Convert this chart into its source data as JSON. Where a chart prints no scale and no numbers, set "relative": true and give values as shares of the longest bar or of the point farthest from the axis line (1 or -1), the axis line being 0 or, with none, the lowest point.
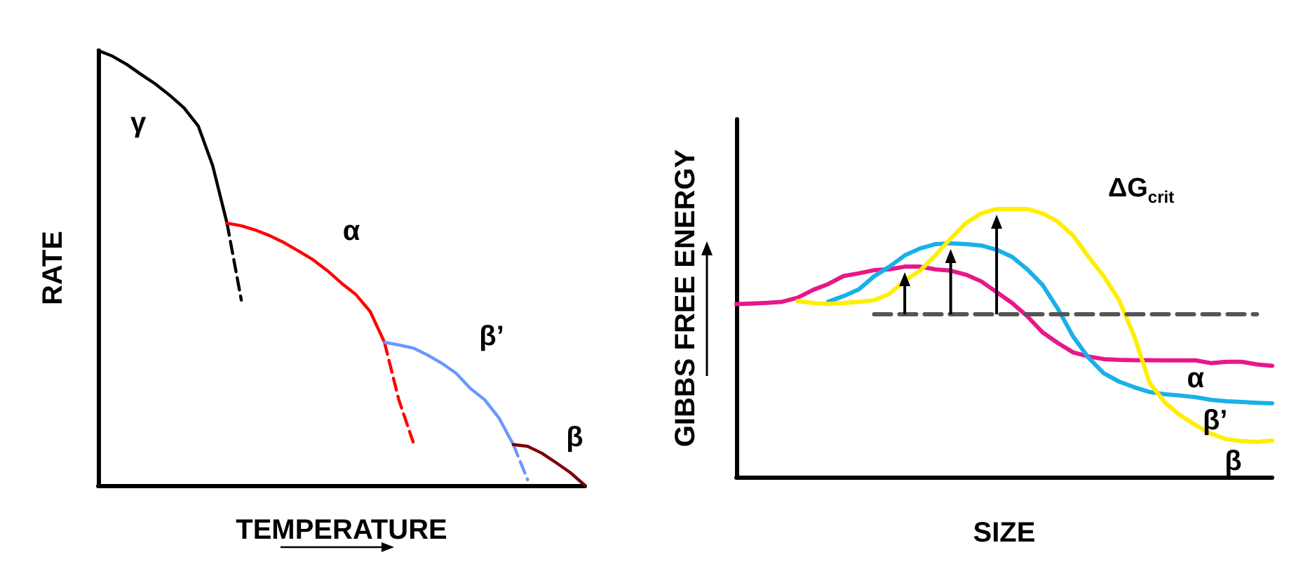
{
  "chart_data": [
    {
      "type": "line",
      "relative": true,
      "xlabel": "TEMPERATURE",
      "ylabel": "RATE",
      "marker": "none",
      "categories": [
        null,
        null,
        null,
        null,
        null,
        null,
        null,
        null,
        null,
        null,
        null,
        null,
        null,
        null,
        null,
        null,
        null,
        null,
        null,
        null,
        null,
        null,
        null,
        null,
        null,
        null,
        null,
        null,
        null,
        null,
        null,
        null,
        null,
        null,
        null
      ],
      "series": [
        {
          "name": "γ",
          "color": "#000000",
          "values": [
            1,
            0.987,
            0.968,
            0.945,
            0.923,
            0.897,
            0.868,
            0.826,
            0.735,
            0.603,
            null,
            null,
            null,
            null,
            null,
            null,
            null,
            null,
            null,
            null,
            null,
            null,
            null,
            null,
            null,
            null,
            null,
            null,
            null,
            null,
            null,
            null,
            null,
            null,
            null
          ]
        },
        {
          "color": "#000000",
          "line_style": "dashed",
          "values": [
            null,
            null,
            null,
            null,
            null,
            null,
            null,
            null,
            null,
            0.603,
            0.426,
            null,
            null,
            null,
            null,
            null,
            null,
            null,
            null,
            null,
            null,
            null,
            null,
            null,
            null,
            null,
            null,
            null,
            null,
            null,
            null,
            null,
            null,
            null,
            null
          ]
        },
        {
          "name": "α",
          "color": "#ff0000",
          "values": [
            null,
            null,
            null,
            null,
            null,
            null,
            null,
            null,
            null,
            0.603,
            0.597,
            0.587,
            0.574,
            0.558,
            0.539,
            0.519,
            0.494,
            0.465,
            0.439,
            0.4,
            0.329,
            null,
            null,
            null,
            null,
            null,
            null,
            null,
            null,
            null,
            null,
            null,
            null,
            null,
            null
          ]
        },
        {
          "color": "#ff0000",
          "line_style": "dashed",
          "values": [
            null,
            null,
            null,
            null,
            null,
            null,
            null,
            null,
            null,
            null,
            null,
            null,
            null,
            null,
            null,
            null,
            null,
            null,
            null,
            null,
            0.329,
            0.197,
            0.1,
            null,
            null,
            null,
            null,
            null,
            null,
            null,
            null,
            null,
            null,
            null,
            null
          ]
        },
        {
          "name": "β’",
          "color": "#6699ff",
          "values": [
            null,
            null,
            null,
            null,
            null,
            null,
            null,
            null,
            null,
            null,
            null,
            null,
            null,
            null,
            null,
            null,
            null,
            null,
            null,
            null,
            0.329,
            0.323,
            0.316,
            0.3,
            0.281,
            0.258,
            0.223,
            0.197,
            0.155,
            0.094,
            null,
            null,
            null,
            null,
            null
          ]
        },
        {
          "color": "#6699ff",
          "line_style": "dashed",
          "values": [
            null,
            null,
            null,
            null,
            null,
            null,
            null,
            null,
            null,
            null,
            null,
            null,
            null,
            null,
            null,
            null,
            null,
            null,
            null,
            null,
            null,
            null,
            null,
            null,
            null,
            null,
            null,
            null,
            null,
            0.094,
            0.013,
            null,
            null,
            null,
            null
          ]
        },
        {
          "name": "β",
          "color": "#7b0000",
          "values": [
            null,
            null,
            null,
            null,
            null,
            null,
            null,
            null,
            null,
            null,
            null,
            null,
            null,
            null,
            null,
            null,
            null,
            null,
            null,
            null,
            null,
            null,
            null,
            null,
            null,
            null,
            null,
            null,
            null,
            0.094,
            0.09,
            0.074,
            0.052,
            0.029,
            0
          ]
        }
      ]
    },
    {
      "type": "line",
      "relative": true,
      "xlabel": "SIZE",
      "ylabel": "GIBBS FREE ENERGY",
      "marker": "none",
      "annotations": [
        "ΔG$_{crit}$"
      ],
      "categories": [
        null,
        null,
        null,
        null,
        null,
        null,
        null,
        null,
        null,
        null,
        null,
        null,
        null,
        null,
        null,
        null,
        null,
        null,
        null,
        null,
        null,
        null,
        null,
        null,
        null,
        null,
        null,
        null,
        null,
        null,
        null,
        null,
        null,
        null,
        null,
        null
      ],
      "series": [
        {
          "name": "α",
          "color": "#e8178a",
          "values": [
            0.645,
            0.647,
            0.65,
            0.654,
            0.669,
            0.698,
            0.72,
            0.75,
            0.76,
            0.772,
            0.775,
            0.785,
            0.785,
            0.775,
            0.77,
            0.755,
            0.73,
            0.69,
            0.65,
            0.6,
            0.54,
            0.5,
            0.465,
            0.45,
            0.44,
            0.437,
            0.436,
            0.436,
            0.435,
            0.435,
            0.435,
            0.425,
            0.43,
            0.43,
            0.42,
            0.415
          ]
        },
        {
          "name": "β’",
          "color": "#1ab0e8",
          "values": [
            null,
            null,
            null,
            null,
            null,
            null,
            0.654,
            0.675,
            0.7,
            0.749,
            0.785,
            0.827,
            0.853,
            0.869,
            0.872,
            0.869,
            0.864,
            0.848,
            0.822,
            0.775,
            0.717,
            0.628,
            0.524,
            0.445,
            0.387,
            0.356,
            0.335,
            0.317,
            0.309,
            0.304,
            0.298,
            0.288,
            0.283,
            0.28,
            0.277,
            0.275
          ]
        },
        {
          "name": "β",
          "color": "#ffee00",
          "values": [
            null,
            null,
            null,
            null,
            0.657,
            0.649,
            0.646,
            0.649,
            0.654,
            0.66,
            0.683,
            0.733,
            0.77,
            0.827,
            0.89,
            0.948,
            0.984,
            1,
            1,
            1,
            0.984,
            0.953,
            0.901,
            0.822,
            0.749,
            0.66,
            0.524,
            0.351,
            0.277,
            0.23,
            0.194,
            0.162,
            0.141,
            0.134,
            0.131,
            0.136
          ]
        },
        {
          "color": "#555555",
          "line_style": "dashed",
          "values": [
            null,
            null,
            null,
            null,
            null,
            null,
            null,
            null,
            null,
            0.607,
            0.607,
            0.607,
            0.607,
            0.607,
            0.607,
            0.607,
            0.607,
            0.607,
            0.607,
            0.607,
            0.607,
            0.607,
            0.607,
            0.607,
            0.607,
            0.607,
            0.607,
            0.607,
            0.607,
            0.607,
            0.607,
            0.607,
            0.607,
            0.607,
            0.607,
            null
          ]
        }
      ]
    }
  ]
}
